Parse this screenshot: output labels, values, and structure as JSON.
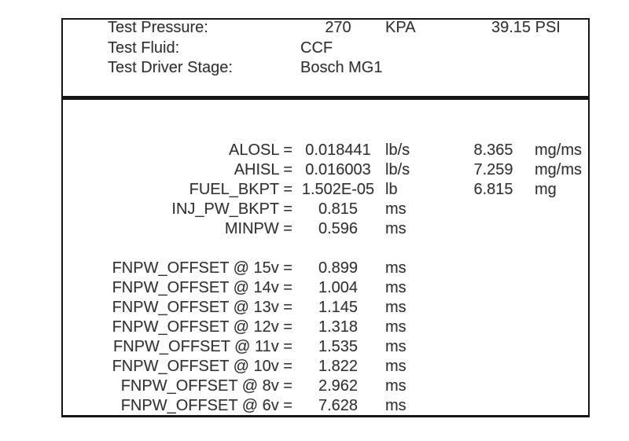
{
  "report": {
    "header": {
      "rows": [
        {
          "label": "Test Pressure:",
          "value": "270",
          "unit": "KPA",
          "value2": "39.15 PSI"
        },
        {
          "label": "Test Fluid:",
          "value": "CCF"
        },
        {
          "label": "Test Driver Stage:",
          "value": "Bosch MG1"
        }
      ]
    },
    "parameters": [
      {
        "label": "ALOSL =",
        "value": "0.018441",
        "unit": "lb/s",
        "value2": "8.365",
        "unit2": "mg/ms"
      },
      {
        "label": "AHISL =",
        "value": "0.016003",
        "unit": "lb/s",
        "value2": "7.259",
        "unit2": "mg/ms"
      },
      {
        "label": "FUEL_BKPT =",
        "value": "1.502E-05",
        "unit": "lb",
        "value2": "6.815",
        "unit2": "mg"
      },
      {
        "label": "INJ_PW_BKPT =",
        "value": "0.815",
        "unit": "ms"
      },
      {
        "label": "MINPW =",
        "value": "0.596",
        "unit": "ms"
      }
    ],
    "offsets": [
      {
        "label": "FNPW_OFFSET @ 15v =",
        "value": "0.899",
        "unit": "ms"
      },
      {
        "label": "FNPW_OFFSET @ 14v =",
        "value": "1.004",
        "unit": "ms"
      },
      {
        "label": "FNPW_OFFSET @ 13v =",
        "value": "1.145",
        "unit": "ms"
      },
      {
        "label": "FNPW_OFFSET @ 12v =",
        "value": "1.318",
        "unit": "ms"
      },
      {
        "label": "FNPW_OFFSET @ 11v =",
        "value": "1.535",
        "unit": "ms"
      },
      {
        "label": "FNPW_OFFSET @ 10v =",
        "value": "1.822",
        "unit": "ms"
      },
      {
        "label": "FNPW_OFFSET @ 8v =",
        "value": "2.962",
        "unit": "ms"
      },
      {
        "label": "FNPW_OFFSET @ 6v =",
        "value": "7.628",
        "unit": "ms"
      }
    ],
    "colors": {
      "text": "#333333",
      "border": "#161616",
      "background": "#ffffff"
    }
  }
}
